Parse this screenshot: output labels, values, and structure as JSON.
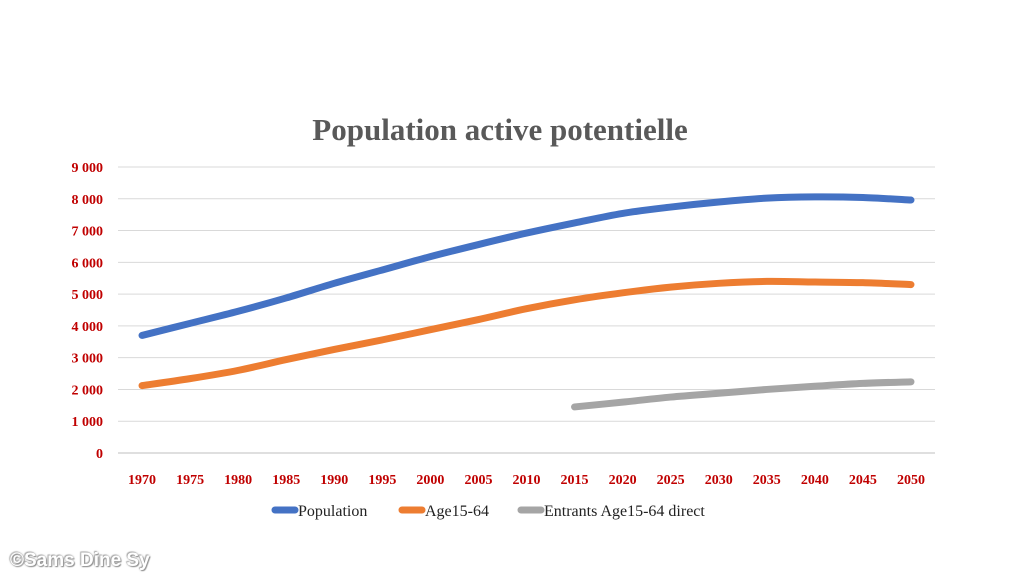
{
  "chart_data": {
    "type": "line",
    "title": "Population active potentielle",
    "xlabel": "",
    "ylabel": "",
    "x": [
      1970,
      1975,
      1980,
      1985,
      1990,
      1995,
      2000,
      2005,
      2010,
      2015,
      2020,
      2025,
      2030,
      2035,
      2040,
      2045,
      2050
    ],
    "x_tick_labels": [
      "1970",
      "1975",
      "1980",
      "1985",
      "1990",
      "1995",
      "2000",
      "2005",
      "2010",
      "2015",
      "2020",
      "2025",
      "2030",
      "2035",
      "2040",
      "2045",
      "2050"
    ],
    "y_ticks": [
      0,
      1000,
      2000,
      3000,
      4000,
      5000,
      6000,
      7000,
      8000,
      9000
    ],
    "y_tick_labels": [
      "0",
      "1 000",
      "2 000",
      "3 000",
      "4 000",
      "5 000",
      "6 000",
      "7 000",
      "8 000",
      "9 000"
    ],
    "ylim": [
      0,
      9000
    ],
    "grid": true,
    "legend_position": "bottom",
    "series": [
      {
        "name": "Population",
        "color": "#4472c4",
        "values": [
          3700,
          4080,
          4460,
          4880,
          5340,
          5760,
          6180,
          6560,
          6920,
          7240,
          7540,
          7740,
          7900,
          8020,
          8060,
          8040,
          7960
        ]
      },
      {
        "name": "Age15-64",
        "color": "#ed7d31",
        "values": [
          2120,
          2340,
          2600,
          2940,
          3260,
          3560,
          3880,
          4200,
          4540,
          4820,
          5040,
          5220,
          5340,
          5400,
          5380,
          5360,
          5300
        ]
      },
      {
        "name": "Entrants Age15-64 direct",
        "color": "#a5a5a5",
        "values": [
          null,
          null,
          null,
          null,
          null,
          null,
          null,
          null,
          null,
          1450,
          1600,
          1760,
          1880,
          2000,
          2100,
          2190,
          2240
        ]
      }
    ]
  },
  "watermark": "©Sams Dine Sy"
}
